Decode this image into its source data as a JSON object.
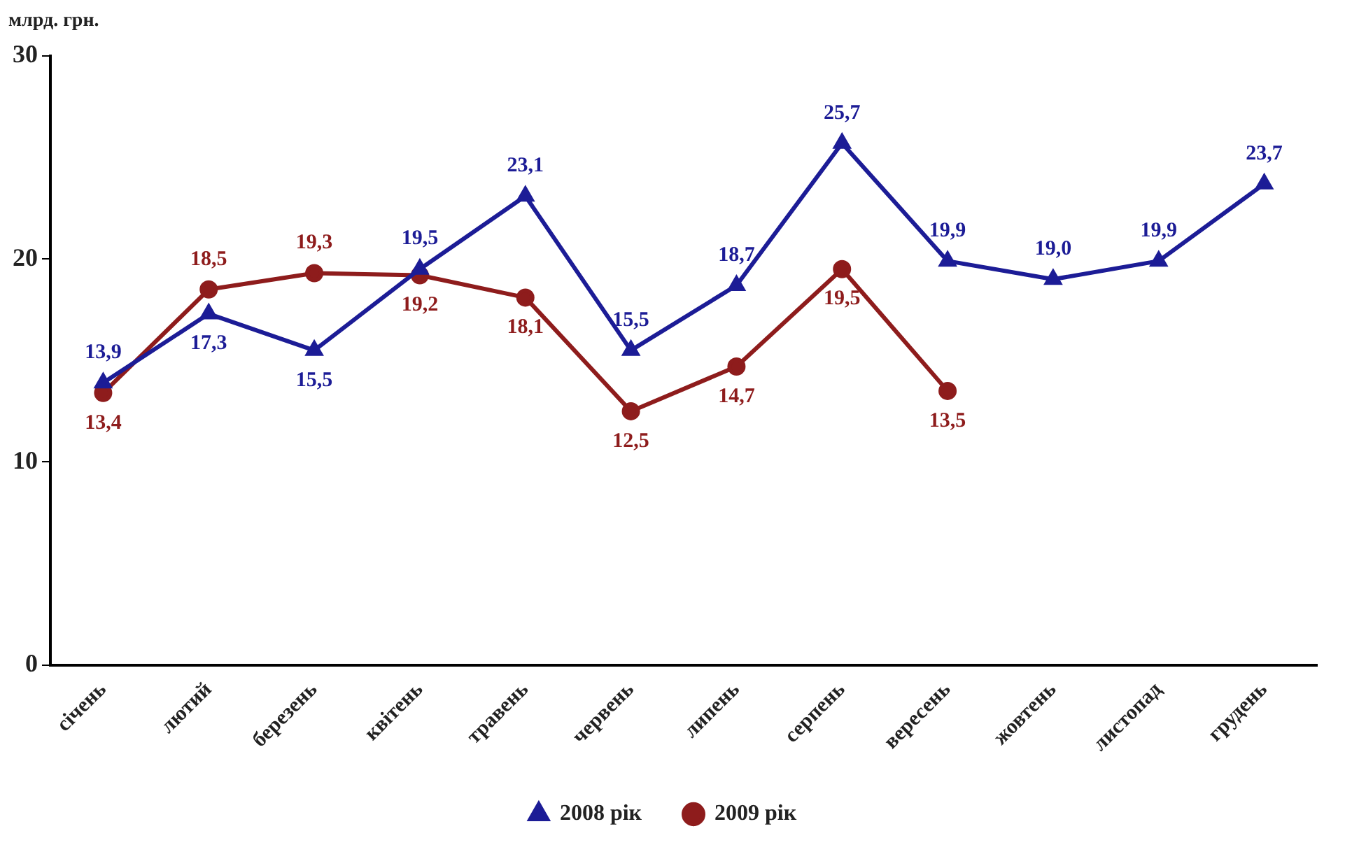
{
  "chart_data": {
    "type": "line",
    "ylabel": "млрд. грн.",
    "categories": [
      "січень",
      "лютий",
      "березень",
      "квітень",
      "травень",
      "червень",
      "липень",
      "серпень",
      "вересень",
      "жовтень",
      "листопад",
      "грудень"
    ],
    "series": [
      {
        "name": "2008 рік",
        "color": "#1c1c96",
        "marker": "triangle",
        "values": [
          13.9,
          17.3,
          15.5,
          19.5,
          23.1,
          15.5,
          18.7,
          25.7,
          19.9,
          19.0,
          19.9,
          23.7
        ],
        "value_labels": [
          "13,9",
          "17,3",
          "15,5",
          "19,5",
          "23,1",
          "15,5",
          "18,7",
          "25,7",
          "19,9",
          "19,0",
          "19,9",
          "23,7"
        ]
      },
      {
        "name": "2009 рік",
        "color": "#8e1c1c",
        "marker": "circle",
        "values": [
          13.4,
          18.5,
          19.3,
          19.2,
          18.1,
          12.5,
          14.7,
          19.5,
          13.5,
          null,
          null,
          null
        ],
        "value_labels": [
          "13,4",
          "18,5",
          "19,3",
          "19,2",
          "18,1",
          "12,5",
          "14,7",
          "19,5",
          "13,5",
          null,
          null,
          null
        ]
      }
    ],
    "ylim": [
      0,
      30
    ],
    "yticks": [
      0,
      10,
      20,
      30
    ],
    "grid": false,
    "legend": "bottom",
    "line_style": "solid"
  }
}
